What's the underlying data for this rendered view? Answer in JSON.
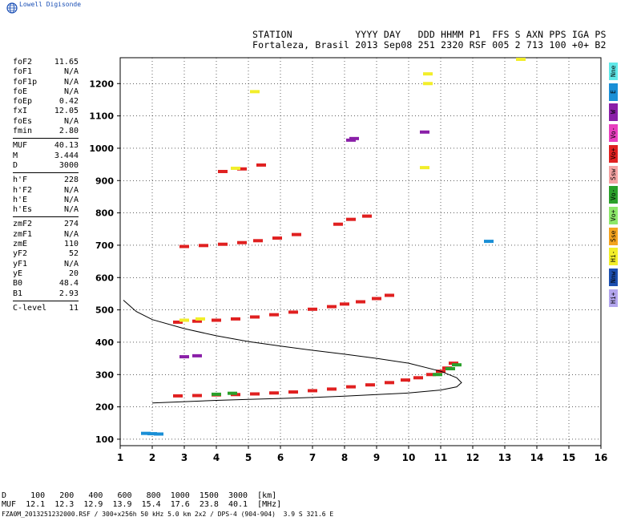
{
  "app": {
    "logo_text": "Lowell Digisonde"
  },
  "header": {
    "line1": "STATION           YYYY DAY   DDD HHMM P1  FFS S AXN PPS IGA PS",
    "line2": "Fortaleza, Brasil 2013 Sep08 251 2320 RSF 005 2 713 100 +0+ B2"
  },
  "params_group1": [
    {
      "k": "foF2",
      "v": "11.65"
    },
    {
      "k": "foF1",
      "v": "N/A"
    },
    {
      "k": "foF1p",
      "v": "N/A"
    },
    {
      "k": "foE",
      "v": "N/A"
    },
    {
      "k": "foEp",
      "v": "0.42"
    },
    {
      "k": "fxI",
      "v": "12.05"
    },
    {
      "k": "foEs",
      "v": "N/A"
    },
    {
      "k": "fmin",
      "v": "2.80"
    }
  ],
  "params_group2": [
    {
      "k": "MUF",
      "v": "40.13"
    },
    {
      "k": "M",
      "v": "3.444"
    },
    {
      "k": "D",
      "v": "3000"
    }
  ],
  "params_group3": [
    {
      "k": "h'F",
      "v": "228"
    },
    {
      "k": "h'F2",
      "v": "N/A"
    },
    {
      "k": "h'E",
      "v": "N/A"
    },
    {
      "k": "h'Es",
      "v": "N/A"
    }
  ],
  "params_group4": [
    {
      "k": "zmF2",
      "v": "274"
    },
    {
      "k": "zmF1",
      "v": "N/A"
    },
    {
      "k": "zmE",
      "v": "110"
    },
    {
      "k": "yF2",
      "v": "52"
    },
    {
      "k": "yF1",
      "v": "N/A"
    },
    {
      "k": "yE",
      "v": "20"
    },
    {
      "k": "B0",
      "v": "48.4"
    },
    {
      "k": "B1",
      "v": "2.93"
    }
  ],
  "params_group5": [
    {
      "k": "C-level",
      "v": "11"
    }
  ],
  "side_legend": [
    {
      "label": "Nne",
      "color": "#5fe8e8"
    },
    {
      "label": "E",
      "color": "#1a8fd6"
    },
    {
      "label": "W",
      "color": "#8a1fa8"
    },
    {
      "label": "Vo-",
      "color": "#e83fbf"
    },
    {
      "label": "Vo+",
      "color": "#e02020"
    },
    {
      "label": "Ssw",
      "color": "#f4a3a3"
    },
    {
      "label": "Vo-",
      "color": "#2aa02a"
    },
    {
      "label": "Vo+",
      "color": "#8de86a"
    },
    {
      "label": "Sse",
      "color": "#f4a41f"
    },
    {
      "label": "Hi-",
      "color": "#f2ee2a"
    },
    {
      "label": "Nnw",
      "color": "#1d4fb0"
    },
    {
      "label": "Hi+",
      "color": "#b3a6ee"
    }
  ],
  "footer": {
    "line1": "D     100   200   400   600   800  1000  1500  3000  [km]",
    "line2": "MUF  12.1  12.3  12.9  13.9  15.4  17.6  23.8  40.1  [MHz]",
    "line3": "FZA0M_2013251232000.RSF / 300+x256h 50 kHz 5.0 km 2x2 / DPS-4 (904-904)  3.9 S 321.6 E"
  },
  "chart_data": {
    "type": "scatter",
    "xlim": [
      1,
      16
    ],
    "ylim": [
      80,
      1280
    ],
    "x_ticks": [
      1,
      2,
      3,
      4,
      5,
      6,
      7,
      8,
      9,
      10,
      11,
      12,
      13,
      14,
      15,
      16
    ],
    "y_ticks": [
      100,
      200,
      300,
      400,
      500,
      600,
      700,
      800,
      900,
      1000,
      1100,
      1200
    ],
    "traces": [
      {
        "name": "",
        "color": "#e02020",
        "x": [
          2.8,
          3.4,
          4.0,
          4.6,
          5.2,
          5.8,
          6.4,
          7.0,
          7.6,
          8.2,
          8.8,
          9.4,
          9.9,
          10.3,
          10.7,
          11.0,
          11.2,
          11.4
        ],
        "y": [
          234,
          235,
          237,
          238,
          240,
          243,
          246,
          250,
          255,
          262,
          268,
          275,
          283,
          290,
          300,
          310,
          320,
          335
        ]
      },
      {
        "name": "",
        "color": "#e02020",
        "x": [
          2.8,
          3.4,
          4.0,
          4.6,
          5.2,
          5.8,
          6.4,
          7.0,
          7.6,
          8.0,
          8.5,
          9.0,
          9.4
        ],
        "y": [
          462,
          465,
          468,
          472,
          478,
          485,
          493,
          502,
          510,
          518,
          525,
          535,
          545
        ]
      },
      {
        "name": "",
        "color": "#e02020",
        "x": [
          3.0,
          3.6,
          4.2,
          4.8,
          5.3,
          5.9,
          6.5
        ],
        "y": [
          696,
          699,
          703,
          708,
          714,
          722,
          733
        ]
      },
      {
        "name": "",
        "color": "#e02020",
        "x": [
          4.2,
          4.8,
          5.4,
          7.8,
          8.2,
          8.7
        ],
        "y": [
          928,
          936,
          948,
          765,
          780,
          790
        ]
      },
      {
        "name": "",
        "color": "#f2ee2a",
        "x": [
          3.0,
          3.5,
          4.6,
          5.2,
          10.5,
          10.6,
          10.6,
          13.5
        ],
        "y": [
          468,
          472,
          938,
          1175,
          940,
          1200,
          1230,
          1275
        ]
      },
      {
        "name": "",
        "color": "#2aa02a",
        "x": [
          4.0,
          4.5,
          10.9,
          11.3,
          11.5
        ],
        "y": [
          239,
          242,
          300,
          318,
          330
        ]
      },
      {
        "name": "",
        "color": "#1a8fd6",
        "x": [
          1.8,
          2.0,
          2.2,
          12.5
        ],
        "y": [
          118,
          117,
          116,
          712
        ]
      },
      {
        "name": "",
        "color": "#8a1fa8",
        "x": [
          3.0,
          3.4,
          8.2,
          8.3,
          10.5
        ],
        "y": [
          355,
          358,
          1025,
          1030,
          1050
        ]
      }
    ],
    "profile": {
      "x": [
        1.1,
        1.5,
        2.0,
        3.0,
        4.0,
        5.0,
        6.0,
        7.0,
        8.0,
        9.0,
        10.0,
        11.0,
        11.5,
        11.65,
        11.5,
        11.0,
        10.0,
        9.0,
        8.0,
        7.0,
        6.0,
        5.0,
        4.0,
        3.0,
        2.0
      ],
      "y": [
        530,
        495,
        470,
        442,
        420,
        402,
        388,
        375,
        363,
        350,
        335,
        310,
        290,
        275,
        262,
        252,
        243,
        238,
        233,
        229,
        226,
        223,
        220,
        216,
        212
      ]
    }
  }
}
